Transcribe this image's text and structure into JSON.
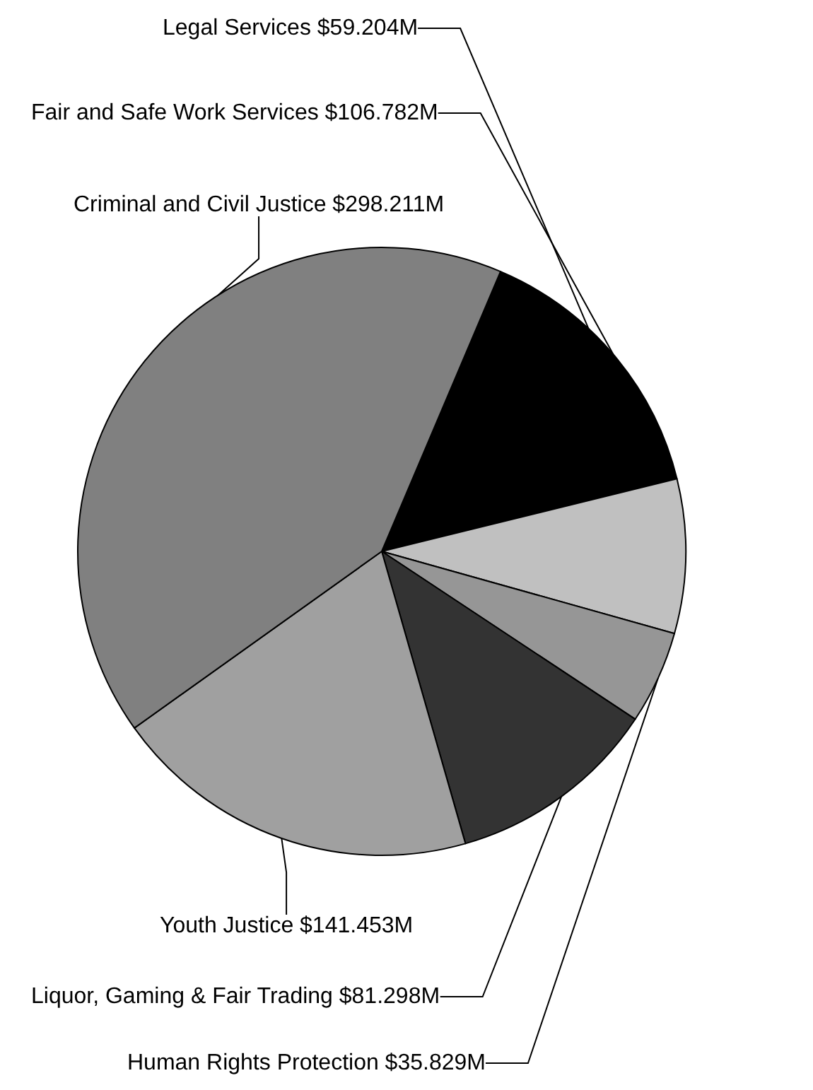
{
  "chart_data": {
    "type": "pie",
    "categories": [
      "Fair and Safe Work Services",
      "Legal Services",
      "Human Rights Protection",
      "Liquor, Gaming & Fair Trading",
      "Youth Justice",
      "Criminal and Civil Justice"
    ],
    "values": [
      106.782,
      59.204,
      35.829,
      81.298,
      141.453,
      298.211
    ],
    "value_labels": [
      "$106.782M",
      "$59.204M",
      "$35.829M",
      "$81.298M",
      "$141.453M",
      "$298.211M"
    ],
    "colors": [
      "#000000",
      "#c0c0c0",
      "#969696",
      "#333333",
      "#a0a0a0",
      "#808080"
    ],
    "legend": false
  }
}
